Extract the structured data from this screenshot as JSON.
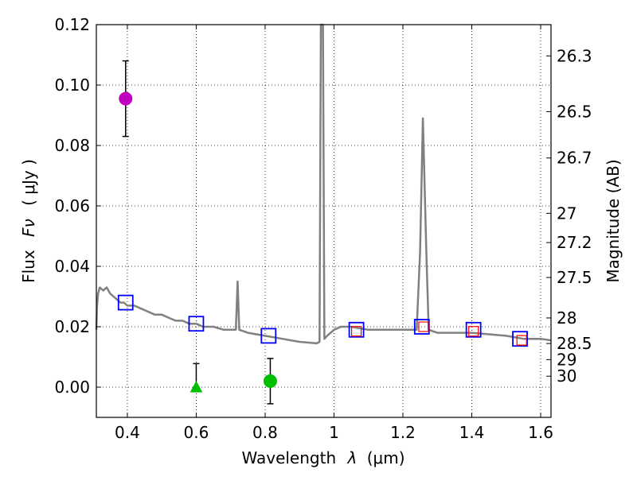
{
  "chart_data": {
    "type": "scatter",
    "xlabel": "Wavelength",
    "xlabel_symbol": "λ",
    "xlabel_unit": "(μm)",
    "ylabel": "Flux",
    "ylabel_symbol": "Fν",
    "ylabel_unit": "( μJy )",
    "y2label": "Magnitude (AB)",
    "xlim": [
      0.31,
      1.63
    ],
    "ylim": [
      -0.01,
      0.12
    ],
    "xticks": [
      0.4,
      0.6,
      0.8,
      1.0,
      1.2,
      1.4,
      1.6
    ],
    "xtick_labels": [
      "0.4",
      "0.6",
      "0.8",
      "1",
      "1.2",
      "1.4",
      "1.6"
    ],
    "yticks": [
      0.0,
      0.02,
      0.04,
      0.06,
      0.08,
      0.1,
      0.12
    ],
    "ytick_labels": [
      "0.00",
      "0.02",
      "0.04",
      "0.06",
      "0.08",
      "0.10",
      "0.12"
    ],
    "mag_ticks": [
      26.3,
      26.5,
      26.7,
      27,
      27.2,
      27.5,
      28,
      28.5,
      29,
      30
    ],
    "mag_tick_labels": [
      "26.3",
      "26.5",
      "26.7",
      "27",
      "27.2",
      "27.5",
      "28",
      "28.5",
      "29",
      "30"
    ],
    "grid": true,
    "colors": {
      "spectrum": "#808080",
      "model_marker": "#0000ff",
      "obs_square": "#ff0000",
      "purple_point": "#bf00bf",
      "green_point": "#00bf00",
      "errorbar": "#000000"
    },
    "spectrum": [
      [
        0.31,
        0.019
      ],
      [
        0.312,
        0.027
      ],
      [
        0.315,
        0.031
      ],
      [
        0.32,
        0.033
      ],
      [
        0.33,
        0.032
      ],
      [
        0.34,
        0.033
      ],
      [
        0.35,
        0.031
      ],
      [
        0.36,
        0.03
      ],
      [
        0.37,
        0.029
      ],
      [
        0.38,
        0.028
      ],
      [
        0.39,
        0.028
      ],
      [
        0.4,
        0.027
      ],
      [
        0.42,
        0.027
      ],
      [
        0.44,
        0.026
      ],
      [
        0.46,
        0.025
      ],
      [
        0.48,
        0.024
      ],
      [
        0.5,
        0.024
      ],
      [
        0.52,
        0.023
      ],
      [
        0.54,
        0.022
      ],
      [
        0.56,
        0.022
      ],
      [
        0.58,
        0.021
      ],
      [
        0.6,
        0.021
      ],
      [
        0.62,
        0.02
      ],
      [
        0.65,
        0.02
      ],
      [
        0.68,
        0.019
      ],
      [
        0.7,
        0.019
      ],
      [
        0.715,
        0.019
      ],
      [
        0.72,
        0.035
      ],
      [
        0.725,
        0.019
      ],
      [
        0.75,
        0.018
      ],
      [
        0.8,
        0.017
      ],
      [
        0.85,
        0.016
      ],
      [
        0.9,
        0.015
      ],
      [
        0.95,
        0.0145
      ],
      [
        0.958,
        0.015
      ],
      [
        0.962,
        0.12
      ],
      [
        0.968,
        0.12
      ],
      [
        0.972,
        0.016
      ],
      [
        0.98,
        0.017
      ],
      [
        1.0,
        0.019
      ],
      [
        1.02,
        0.02
      ],
      [
        1.05,
        0.02
      ],
      [
        1.1,
        0.019
      ],
      [
        1.15,
        0.019
      ],
      [
        1.2,
        0.019
      ],
      [
        1.24,
        0.019
      ],
      [
        1.25,
        0.045
      ],
      [
        1.258,
        0.089
      ],
      [
        1.268,
        0.045
      ],
      [
        1.275,
        0.019
      ],
      [
        1.3,
        0.018
      ],
      [
        1.4,
        0.018
      ],
      [
        1.5,
        0.017
      ],
      [
        1.55,
        0.016
      ],
      [
        1.6,
        0.016
      ],
      [
        1.63,
        0.0155
      ]
    ],
    "model_points": [
      {
        "x": 0.395,
        "y": 0.028
      },
      {
        "x": 0.6,
        "y": 0.021
      },
      {
        "x": 0.81,
        "y": 0.017
      },
      {
        "x": 1.065,
        "y": 0.019
      },
      {
        "x": 1.255,
        "y": 0.02
      },
      {
        "x": 1.405,
        "y": 0.019
      },
      {
        "x": 1.54,
        "y": 0.016
      }
    ],
    "observed_squares": [
      {
        "x": 1.065,
        "y": 0.0185
      },
      {
        "x": 1.26,
        "y": 0.02
      },
      {
        "x": 1.405,
        "y": 0.0185
      },
      {
        "x": 1.545,
        "y": 0.0155
      }
    ],
    "detections": [
      {
        "x": 0.395,
        "y": 0.0955,
        "yerr_low": 0.083,
        "yerr_high": 0.108,
        "color": "purple_point",
        "marker": "circle"
      },
      {
        "x": 0.6,
        "y": 0.0,
        "yerr_low": 0.0,
        "yerr_high": 0.0078,
        "color": "green_point",
        "marker": "triangle"
      },
      {
        "x": 0.815,
        "y": 0.002,
        "yerr_low": -0.0055,
        "yerr_high": 0.0095,
        "color": "green_point",
        "marker": "circle"
      }
    ]
  }
}
